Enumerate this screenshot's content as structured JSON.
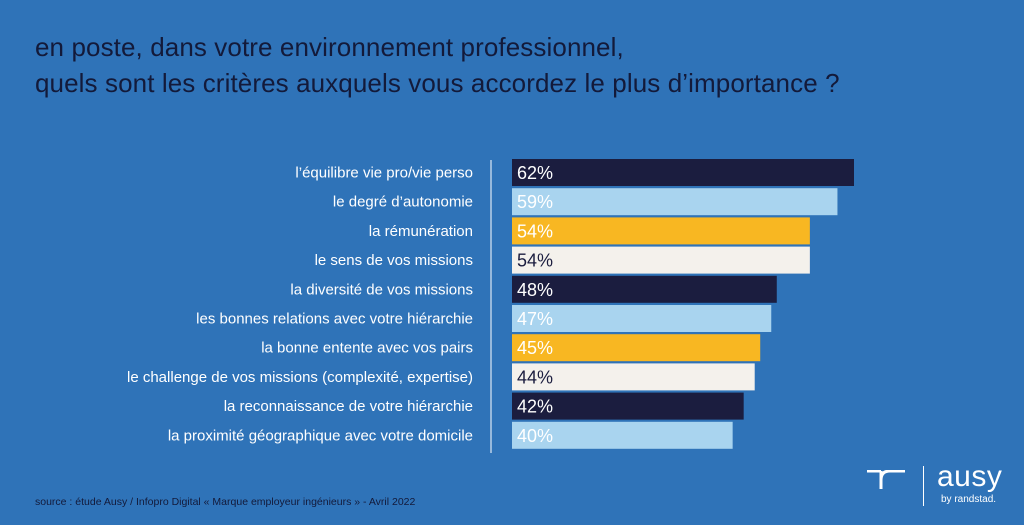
{
  "title": {
    "line1": "en poste, dans votre environnement professionnel,",
    "line2": "quels sont les critères auxquels vous accordez le plus d’importance ?"
  },
  "chart_data": {
    "type": "bar",
    "orientation": "horizontal",
    "categories": [
      "l’équilibre vie pro/vie perso",
      "le degré d’autonomie",
      "la rémunération",
      "le sens de vos missions",
      "la diversité de vos missions",
      "les bonnes relations avec votre hiérarchie",
      "la bonne entente avec vos pairs",
      "le challenge de vos missions (complexité, expertise)",
      "la reconnaissance de votre hiérarchie",
      "la proximité géographique avec votre domicile"
    ],
    "values": [
      62,
      59,
      54,
      54,
      48,
      47,
      45,
      44,
      42,
      40
    ],
    "value_labels": [
      "62%",
      "59%",
      "54%",
      "54%",
      "48%",
      "47%",
      "45%",
      "44%",
      "42%",
      "40%"
    ],
    "unit": "%",
    "bar_colors": [
      "#1b1d3f",
      "#a9d4ef",
      "#f8b722",
      "#f4f1ec",
      "#1b1d3f",
      "#a9d4ef",
      "#f8b722",
      "#f4f1ec",
      "#1b1d3f",
      "#a9d4ef"
    ],
    "label_colors": [
      "#ffffff",
      "#ffffff",
      "#ffffff",
      "#1b1d3f",
      "#ffffff",
      "#ffffff",
      "#ffffff",
      "#1b1d3f",
      "#ffffff",
      "#ffffff"
    ],
    "xlim": [
      0,
      62
    ],
    "grid": false,
    "legend": "none"
  },
  "footer": {
    "source": "source : étude Ausy / Infopro Digital « Marque employeur ingénieurs » - Avril 2022",
    "brand": "ausy",
    "brand_sub": "by randstad."
  },
  "colors": {
    "background": "#2f73b8",
    "title": "#131a3a",
    "axis": "#ffffff"
  },
  "icons": {
    "logo": "randstad-logo-icon"
  }
}
